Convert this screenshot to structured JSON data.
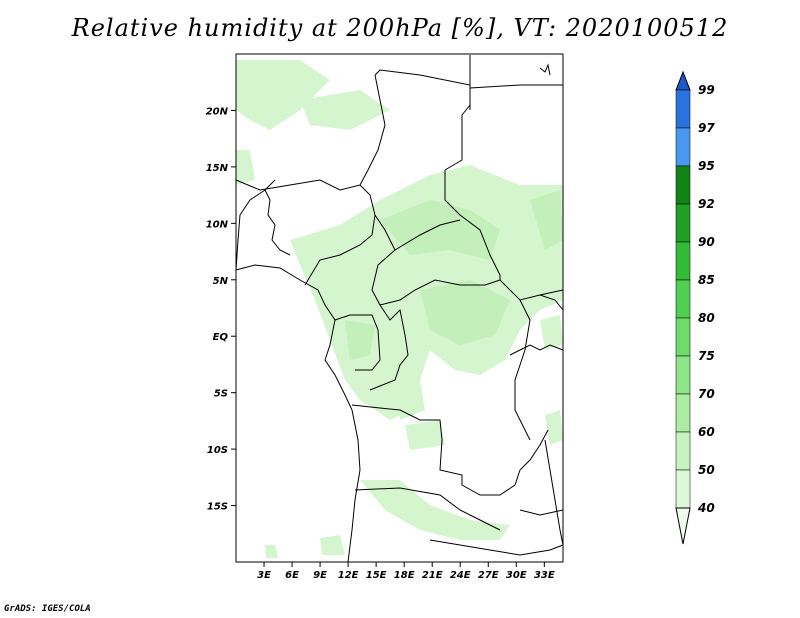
{
  "title": "Relative humidity at 200hPa [%], VT: 2020100512",
  "credit": "GrADS: IGES/COLA",
  "map": {
    "lon_range": [
      0,
      35
    ],
    "lat_range": [
      -20,
      25
    ],
    "x_ticks": [
      "3E",
      "6E",
      "9E",
      "12E",
      "15E",
      "18E",
      "21E",
      "24E",
      "27E",
      "30E",
      "33E"
    ],
    "x_tick_values": [
      3,
      6,
      9,
      12,
      15,
      18,
      21,
      24,
      27,
      30,
      33
    ],
    "y_ticks": [
      "20N",
      "15N",
      "10N",
      "5N",
      "EQ",
      "5S",
      "10S",
      "15S"
    ],
    "y_tick_values": [
      20,
      15,
      10,
      5,
      0,
      -5,
      -10,
      -15
    ]
  },
  "colorbar": {
    "levels": [
      "40",
      "50",
      "60",
      "70",
      "75",
      "80",
      "85",
      "90",
      "92",
      "95",
      "97",
      "99"
    ],
    "colors": [
      "#f0fcee",
      "#dcf8d7",
      "#c7f3be",
      "#aceca3",
      "#8ee488",
      "#6fdb6d",
      "#50cf52",
      "#33bb37",
      "#1f9f24",
      "#128416",
      "#4a97f0",
      "#2a73de",
      "#1c58c6"
    ]
  },
  "regions": {
    "humid_zone": "#d4f5cd",
    "humid_core": "#c3efba"
  }
}
